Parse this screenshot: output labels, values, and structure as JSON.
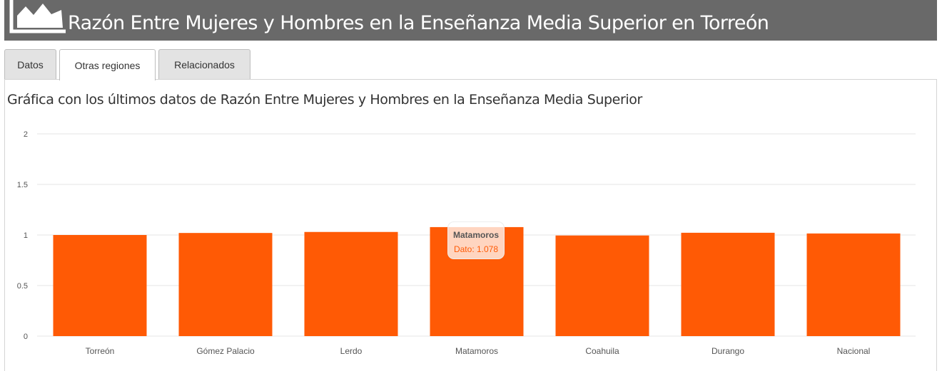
{
  "header": {
    "title": "Razón Entre Mujeres y Hombres en la Enseñanza Media Superior en Torreón",
    "icon": "area-chart-icon"
  },
  "tabs": [
    {
      "label": "Datos",
      "active": false
    },
    {
      "label": "Otras regiones",
      "active": true
    },
    {
      "label": "Relacionados",
      "active": false
    }
  ],
  "chart_heading": "Gráfica con los últimos datos de Razón Entre Mujeres y Hombres en la Enseñanza Media Superior",
  "chart_data": {
    "type": "bar",
    "categories": [
      "Torreón",
      "Gómez Palacio",
      "Lerdo",
      "Matamoros",
      "Coahuila",
      "Durango",
      "Nacional"
    ],
    "values": [
      1.0,
      1.02,
      1.03,
      1.078,
      0.995,
      1.022,
      1.015
    ],
    "ylim": [
      0,
      2
    ],
    "yticks": [
      0,
      0.5,
      1,
      1.5,
      2
    ],
    "grid": true,
    "bar_color": "#ff5a05",
    "tooltip": {
      "category": "Matamoros",
      "label": "Dato: 1.078"
    }
  }
}
